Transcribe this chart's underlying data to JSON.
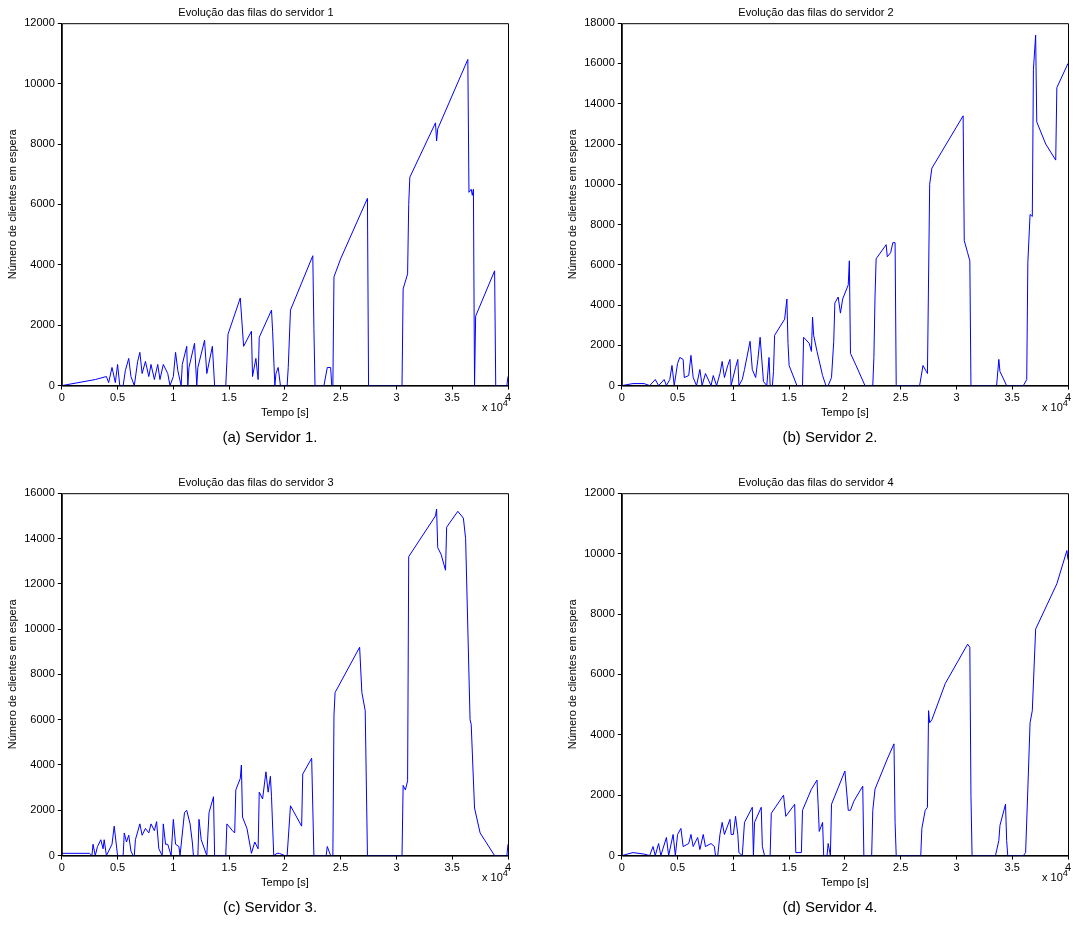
{
  "chart_data": [
    {
      "type": "line",
      "title": "Evolução das filas do servidor 1",
      "xlabel": "Tempo [s]",
      "ylabel": "Número de clientes em espera",
      "annotations": [
        "x 10$^{4}$",
        "(a) Servidor 1."
      ],
      "xlim": [
        0,
        4
      ],
      "xticks": [
        0,
        0.5,
        1,
        1.5,
        2,
        2.5,
        3,
        3.5,
        4
      ],
      "ylim": [
        0,
        12000
      ],
      "yticks": [
        0,
        2000,
        4000,
        6000,
        8000,
        10000,
        12000
      ],
      "grid": false,
      "legend": false,
      "marker": "none",
      "line_style": "solid",
      "series": [
        {
          "color": "#0000ff",
          "x": [
            0,
            0.3,
            0.4,
            0.42,
            0.45,
            0.48,
            0.5,
            0.52,
            0.55,
            0.57,
            0.6,
            0.62,
            0.65,
            0.68,
            0.7,
            0.72,
            0.75,
            0.78,
            0.8,
            0.83,
            0.86,
            0.88,
            0.91,
            0.95,
            0.97,
            1.0,
            1.02,
            1.04,
            1.07,
            1.08,
            1.12,
            1.13,
            1.14,
            1.19,
            1.21,
            1.22,
            1.28,
            1.3,
            1.35,
            1.37,
            1.45,
            1.47,
            1.48,
            1.49,
            1.6,
            1.63,
            1.7,
            1.71,
            1.74,
            1.76,
            1.77,
            1.88,
            1.89,
            1.91,
            1.92,
            1.94,
            1.96,
            2.02,
            2.03,
            2.05,
            2.15,
            2.25,
            2.26,
            2.27,
            2.35,
            2.38,
            2.41,
            2.42,
            2.43,
            2.44,
            2.5,
            2.74,
            2.75,
            3.05,
            3.06,
            3.1,
            3.11,
            3.12,
            3.35,
            3.36,
            3.37,
            3.64,
            3.65,
            3.67,
            3.68,
            3.69,
            3.7,
            3.71,
            3.88,
            3.89,
            3.99,
            4.0
          ],
          "values": [
            0,
            200,
            300,
            100,
            600,
            100,
            700,
            0,
            0,
            500,
            900,
            300,
            0,
            800,
            1100,
            400,
            800,
            300,
            700,
            200,
            700,
            200,
            700,
            400,
            0,
            300,
            1100,
            500,
            0,
            700,
            1300,
            0,
            600,
            1400,
            0,
            600,
            1500,
            400,
            1300,
            0,
            0,
            0,
            800,
            1700,
            2900,
            1300,
            1800,
            300,
            900,
            200,
            1600,
            2500,
            1800,
            0,
            400,
            600,
            0,
            0,
            600,
            2500,
            3400,
            4300,
            1900,
            0,
            0,
            600,
            600,
            0,
            0,
            3600,
            4200,
            6200,
            0,
            0,
            3200,
            3700,
            6000,
            6900,
            8700,
            8100,
            8500,
            10800,
            6400,
            6500,
            6300,
            6500,
            0,
            2300,
            3800,
            0,
            0,
            300
          ]
        }
      ]
    },
    {
      "type": "line",
      "title": "Evolução das filas do servidor 2",
      "xlabel": "Tempo [s]",
      "ylabel": "Número de clientes em espera",
      "annotations": [
        "x 10$^{4}$",
        "(b) Servidor 2."
      ],
      "xlim": [
        0,
        4
      ],
      "xticks": [
        0,
        0.5,
        1,
        1.5,
        2,
        2.5,
        3,
        3.5,
        4
      ],
      "ylim": [
        0,
        18000
      ],
      "yticks": [
        0,
        2000,
        4000,
        6000,
        8000,
        10000,
        12000,
        14000,
        16000,
        18000
      ],
      "grid": false,
      "legend": false,
      "marker": "none",
      "line_style": "solid",
      "series": [
        {
          "color": "#0000ff",
          "x": [
            0,
            0.1,
            0.2,
            0.25,
            0.3,
            0.33,
            0.38,
            0.4,
            0.43,
            0.45,
            0.47,
            0.5,
            0.52,
            0.55,
            0.56,
            0.6,
            0.62,
            0.64,
            0.67,
            0.7,
            0.72,
            0.75,
            0.8,
            0.82,
            0.85,
            0.88,
            0.9,
            0.92,
            0.95,
            0.97,
            0.98,
            1.02,
            1.04,
            1.05,
            1.08,
            1.1,
            1.15,
            1.17,
            1.2,
            1.22,
            1.24,
            1.27,
            1.3,
            1.32,
            1.33,
            1.35,
            1.36,
            1.37,
            1.46,
            1.48,
            1.49,
            1.5,
            1.57,
            1.62,
            1.63,
            1.68,
            1.7,
            1.71,
            1.72,
            1.75,
            1.8,
            1.83,
            1.85,
            1.88,
            1.9,
            1.91,
            1.94,
            1.96,
            1.98,
            2.03,
            2.04,
            2.05,
            2.1,
            2.18,
            2.25,
            2.26,
            2.27,
            2.28,
            2.37,
            2.38,
            2.41,
            2.43,
            2.45,
            2.46,
            2.67,
            2.7,
            2.73,
            2.74,
            2.76,
            2.78,
            3.06,
            3.07,
            3.1,
            3.12,
            3.13,
            3.36,
            3.38,
            3.39,
            3.45,
            3.6,
            3.63,
            3.64,
            3.66,
            3.68,
            3.69,
            3.71,
            3.72,
            3.8,
            3.89,
            3.9,
            4.0
          ],
          "values": [
            0,
            100,
            100,
            0,
            300,
            0,
            300,
            0,
            300,
            1000,
            0,
            1100,
            1400,
            1300,
            400,
            500,
            1500,
            400,
            0,
            800,
            0,
            600,
            0,
            500,
            0,
            600,
            1200,
            400,
            1000,
            1300,
            0,
            900,
            1300,
            0,
            300,
            800,
            2200,
            800,
            400,
            1300,
            2400,
            200,
            0,
            1400,
            0,
            0,
            700,
            2500,
            3300,
            4300,
            2100,
            1000,
            0,
            0,
            2400,
            2100,
            1700,
            3400,
            2500,
            1700,
            500,
            0,
            0,
            400,
            2200,
            4100,
            4400,
            3600,
            4300,
            5000,
            6200,
            1600,
            1000,
            0,
            0,
            1400,
            4400,
            6300,
            7000,
            6400,
            6600,
            7100,
            7100,
            0,
            0,
            1000,
            700,
            600,
            10000,
            10800,
            13400,
            7200,
            6600,
            6200,
            0,
            0,
            1300,
            700,
            0,
            0,
            300,
            6100,
            8500,
            8400,
            15700,
            17400,
            13100,
            12000,
            11200,
            14800,
            16000
          ]
        }
      ]
    },
    {
      "type": "line",
      "title": "Evolução das filas do servidor 3",
      "xlabel": "Tempo [s]",
      "ylabel": "Número de clientes em espera",
      "annotations": [
        "x 10$^{4}$",
        "(c) Servidor 3."
      ],
      "xlim": [
        0,
        4
      ],
      "xticks": [
        0,
        0.5,
        1,
        1.5,
        2,
        2.5,
        3,
        3.5,
        4
      ],
      "ylim": [
        0,
        16000
      ],
      "yticks": [
        0,
        2000,
        4000,
        6000,
        8000,
        10000,
        12000,
        14000,
        16000
      ],
      "grid": false,
      "legend": false,
      "marker": "none",
      "line_style": "solid",
      "series": [
        {
          "color": "#0000ff",
          "x": [
            0,
            0.25,
            0.27,
            0.28,
            0.3,
            0.32,
            0.35,
            0.37,
            0.38,
            0.4,
            0.45,
            0.47,
            0.5,
            0.55,
            0.56,
            0.58,
            0.6,
            0.62,
            0.64,
            0.65,
            0.66,
            0.7,
            0.72,
            0.75,
            0.78,
            0.8,
            0.83,
            0.85,
            0.87,
            0.9,
            0.91,
            0.93,
            0.95,
            0.98,
            1.0,
            1.02,
            1.05,
            1.06,
            1.1,
            1.12,
            1.15,
            1.17,
            1.18,
            1.22,
            1.23,
            1.25,
            1.3,
            1.32,
            1.36,
            1.37,
            1.47,
            1.48,
            1.53,
            1.55,
            1.56,
            1.6,
            1.61,
            1.62,
            1.66,
            1.7,
            1.73,
            1.76,
            1.77,
            1.8,
            1.83,
            1.85,
            1.87,
            1.88,
            1.9,
            1.93,
            1.95,
            2.0,
            2.02,
            2.05,
            2.15,
            2.16,
            2.24,
            2.26,
            2.37,
            2.38,
            2.41,
            2.43,
            2.44,
            2.45,
            2.67,
            2.69,
            2.72,
            2.74,
            3.05,
            3.06,
            3.08,
            3.1,
            3.11,
            3.35,
            3.36,
            3.37,
            3.4,
            3.44,
            3.45,
            3.55,
            3.6,
            3.62,
            3.66,
            3.67,
            3.7,
            3.75,
            3.88,
            3.99,
            4.0
          ],
          "values": [
            100,
            100,
            0,
            500,
            0,
            400,
            700,
            300,
            700,
            0,
            500,
            1300,
            0,
            0,
            1000,
            600,
            900,
            200,
            0,
            0,
            700,
            1400,
            900,
            1200,
            1000,
            1400,
            1100,
            1500,
            300,
            0,
            1400,
            500,
            500,
            0,
            1600,
            500,
            400,
            0,
            1900,
            2000,
            1400,
            600,
            0,
            0,
            1600,
            700,
            0,
            1900,
            2600,
            0,
            0,
            1400,
            1100,
            1000,
            2900,
            3400,
            4000,
            1700,
            1200,
            100,
            600,
            300,
            2800,
            2500,
            3700,
            2800,
            3500,
            2600,
            0,
            100,
            100,
            0,
            0,
            2200,
            1300,
            3600,
            4300,
            0,
            0,
            400,
            0,
            0,
            6200,
            7200,
            9200,
            7200,
            6400,
            0,
            0,
            3100,
            2900,
            3300,
            13200,
            15000,
            15300,
            13600,
            13300,
            12600,
            14500,
            15200,
            14900,
            14000,
            6000,
            5800,
            2100,
            1000,
            0,
            0,
            500
          ]
        }
      ]
    },
    {
      "type": "line",
      "title": "Evolução das filas do servidor 4",
      "xlabel": "Tempo [s]",
      "ylabel": "Número de clientes em espera",
      "annotations": [
        "x 10$^{4}$",
        "(d) Servidor 4."
      ],
      "xlim": [
        0,
        4
      ],
      "xticks": [
        0,
        0.5,
        1,
        1.5,
        2,
        2.5,
        3,
        3.5,
        4
      ],
      "ylim": [
        0,
        12000
      ],
      "yticks": [
        0,
        2000,
        4000,
        6000,
        8000,
        10000,
        12000
      ],
      "grid": false,
      "legend": false,
      "marker": "none",
      "line_style": "solid",
      "series": [
        {
          "color": "#0000ff",
          "x": [
            0,
            0.1,
            0.2,
            0.25,
            0.28,
            0.3,
            0.33,
            0.35,
            0.4,
            0.42,
            0.46,
            0.48,
            0.5,
            0.53,
            0.55,
            0.6,
            0.62,
            0.64,
            0.68,
            0.7,
            0.73,
            0.75,
            0.8,
            0.83,
            0.84,
            0.86,
            0.88,
            0.9,
            0.92,
            0.97,
            0.98,
            1.0,
            1.02,
            1.04,
            1.05,
            1.08,
            1.1,
            1.17,
            1.18,
            1.19,
            1.25,
            1.26,
            1.28,
            1.33,
            1.34,
            1.45,
            1.47,
            1.55,
            1.56,
            1.61,
            1.62,
            1.7,
            1.75,
            1.76,
            1.77,
            1.8,
            1.81,
            1.84,
            1.85,
            1.87,
            1.88,
            2.0,
            2.03,
            2.05,
            2.08,
            2.16,
            2.17,
            2.24,
            2.25,
            2.27,
            2.38,
            2.44,
            2.45,
            2.46,
            2.68,
            2.69,
            2.72,
            2.74,
            2.75,
            2.76,
            2.78,
            2.9,
            3.1,
            3.12,
            3.13,
            3.14,
            3.35,
            3.38,
            3.39,
            3.44,
            3.45,
            3.46,
            3.6,
            3.62,
            3.64,
            3.66,
            3.68,
            3.71,
            3.9,
            3.99,
            4.0
          ],
          "values": [
            0,
            100,
            50,
            0,
            300,
            0,
            400,
            0,
            600,
            0,
            700,
            0,
            700,
            900,
            300,
            400,
            700,
            300,
            600,
            200,
            700,
            300,
            400,
            300,
            0,
            0,
            700,
            1100,
            700,
            1200,
            700,
            700,
            1300,
            700,
            100,
            0,
            1100,
            1600,
            0,
            1100,
            1600,
            300,
            0,
            0,
            1400,
            2000,
            1300,
            1700,
            100,
            100,
            1500,
            2200,
            2500,
            1700,
            800,
            1100,
            0,
            0,
            400,
            0,
            1700,
            2800,
            1500,
            1500,
            1800,
            2300,
            0,
            0,
            1500,
            2200,
            3200,
            3700,
            1100,
            0,
            0,
            900,
            1500,
            1600,
            4800,
            4400,
            4500,
            5700,
            7000,
            6900,
            2000,
            0,
            0,
            500,
            1000,
            1700,
            500,
            0,
            0,
            100,
            2200,
            4400,
            4800,
            7500,
            9000,
            10100,
            9800
          ]
        }
      ]
    }
  ]
}
